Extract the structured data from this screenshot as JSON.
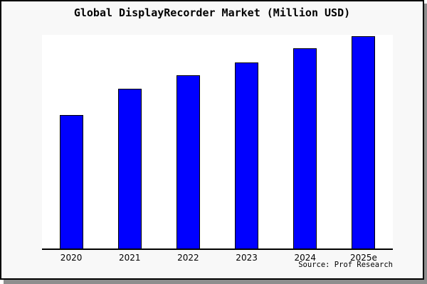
{
  "chart_data": {
    "type": "bar",
    "title": "Global DisplayRecorder Market (Million USD)",
    "categories": [
      "2020",
      "2021",
      "2022",
      "2023",
      "2024",
      "2025e"
    ],
    "values_relative_to_plot_height": [
      0.625,
      0.748,
      0.811,
      0.871,
      0.937,
      0.993
    ],
    "value_labels_shown": false,
    "xlabel": "",
    "ylabel": "",
    "y_axis_ticks": "none",
    "gridlines": false,
    "legend": "none",
    "source_note": "Source: Prof Research",
    "bar_color": "#0000ff",
    "bar_edge_color": "#000000",
    "axis_line_color": "#000000",
    "plot_background": "#ffffff",
    "figure_background": "#f8f8f8",
    "frame_border_color": "#000000",
    "shadow_color": "#8e8e8e"
  }
}
